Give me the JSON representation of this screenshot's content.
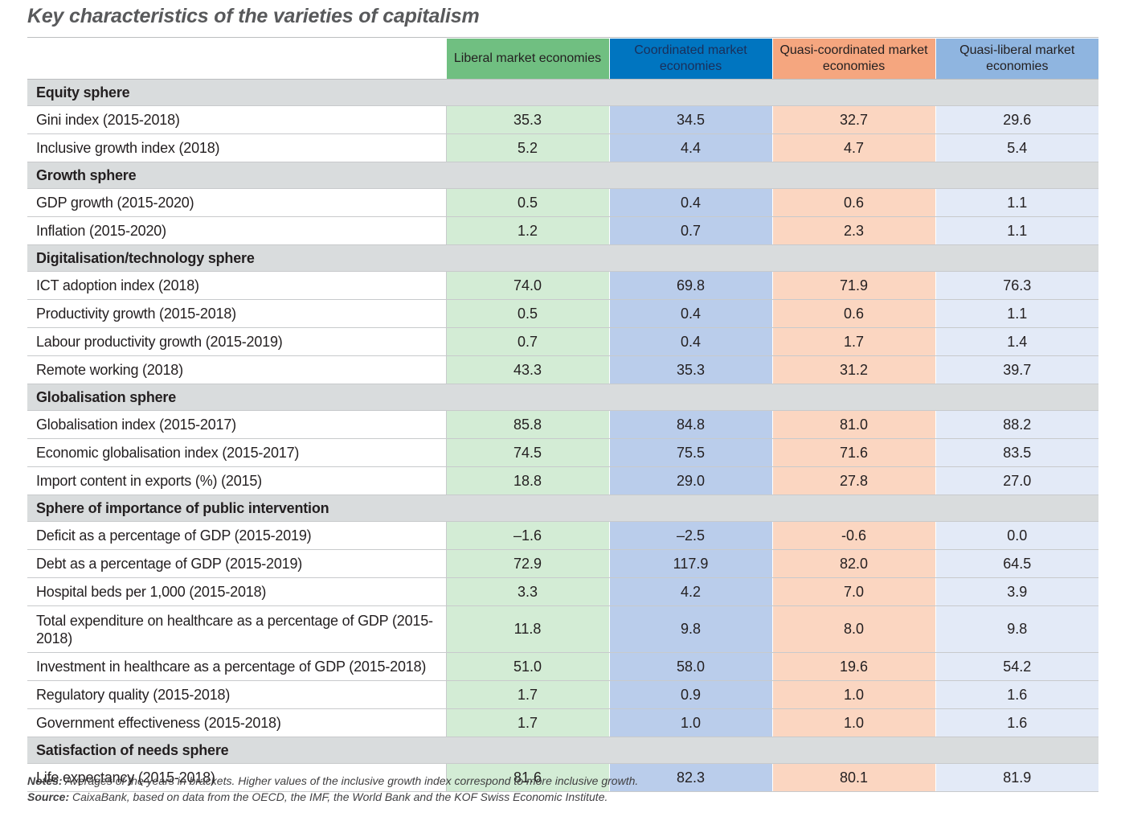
{
  "title": "Key characteristics of the varieties of capitalism",
  "columns": [
    "Liberal market economies",
    "Coordinated market economies",
    "Quasi-coordinated market economies",
    "Quasi-liberal market economies"
  ],
  "sections": [
    {
      "name": "Equity sphere",
      "rows": [
        {
          "label": "Gini index (2015-2018)",
          "values": [
            "35.3",
            "34.5",
            "32.7",
            "29.6"
          ]
        },
        {
          "label": "Inclusive growth index (2018)",
          "values": [
            "5.2",
            "4.4",
            "4.7",
            "5.4"
          ]
        }
      ]
    },
    {
      "name": "Growth sphere",
      "rows": [
        {
          "label": "GDP growth (2015-2020)",
          "values": [
            "0.5",
            "0.4",
            "0.6",
            "1.1"
          ]
        },
        {
          "label": "Inflation (2015-2020)",
          "values": [
            "1.2",
            "0.7",
            "2.3",
            "1.1"
          ]
        }
      ]
    },
    {
      "name": "Digitalisation/technology sphere",
      "rows": [
        {
          "label": "ICT adoption index (2018)",
          "values": [
            "74.0",
            "69.8",
            "71.9",
            "76.3"
          ]
        },
        {
          "label": "Productivity growth (2015-2018)",
          "values": [
            "0.5",
            "0.4",
            "0.6",
            "1.1"
          ]
        },
        {
          "label": "Labour productivity growth (2015-2019)",
          "values": [
            "0.7",
            "0.4",
            "1.7",
            "1.4"
          ]
        },
        {
          "label": "Remote working (2018)",
          "values": [
            "43.3",
            "35.3",
            "31.2",
            "39.7"
          ]
        }
      ]
    },
    {
      "name": "Globalisation sphere",
      "rows": [
        {
          "label": "Globalisation index (2015-2017)",
          "values": [
            "85.8",
            "84.8",
            "81.0",
            "88.2"
          ]
        },
        {
          "label": "Economic globalisation index (2015-2017)",
          "values": [
            "74.5",
            "75.5",
            "71.6",
            "83.5"
          ]
        },
        {
          "label": "Import content in exports (%) (2015)",
          "values": [
            "18.8",
            "29.0",
            "27.8",
            "27.0"
          ]
        }
      ]
    },
    {
      "name": "Sphere of importance of public intervention",
      "rows": [
        {
          "label": "Deficit as a percentage of GDP (2015-2019)",
          "values": [
            "–1.6",
            "–2.5",
            "-0.6",
            "0.0"
          ]
        },
        {
          "label": "Debt as a percentage of GDP (2015-2019)",
          "values": [
            "72.9",
            "117.9",
            "82.0",
            "64.5"
          ]
        },
        {
          "label": "Hospital beds per 1,000 (2015-2018)",
          "values": [
            "3.3",
            "4.2",
            "7.0",
            "3.9"
          ]
        },
        {
          "label": "Total expenditure on healthcare as a percentage of GDP (2015-2018)",
          "values": [
            "11.8",
            "9.8",
            "8.0",
            "9.8"
          ],
          "tall": true
        },
        {
          "label": "Investment in healthcare as a percentage of GDP (2015-2018)",
          "values": [
            "51.0",
            "58.0",
            "19.6",
            "54.2"
          ]
        },
        {
          "label": "Regulatory quality (2015-2018)",
          "values": [
            "1.7",
            "0.9",
            "1.0",
            "1.6"
          ]
        },
        {
          "label": "Government effectiveness (2015-2018)",
          "values": [
            "1.7",
            "1.0",
            "1.0",
            "1.6"
          ]
        }
      ]
    },
    {
      "name": "Satisfaction of needs sphere",
      "rows": [
        {
          "label": "Life expectancy (2015-2018)",
          "values": [
            "81.6",
            "82.3",
            "80.1",
            "81.9"
          ]
        }
      ]
    }
  ],
  "notes": {
    "notes_label": "Notes:",
    "notes_text": "Averages of the years in brackets. Higher values of the inclusive growth index correspond to more inclusive growth.",
    "source_label": "Source:",
    "source_text": "CaixaBank, based on data from the OECD, the IMF, the World Bank and the KOF Swiss Economic Institute."
  }
}
